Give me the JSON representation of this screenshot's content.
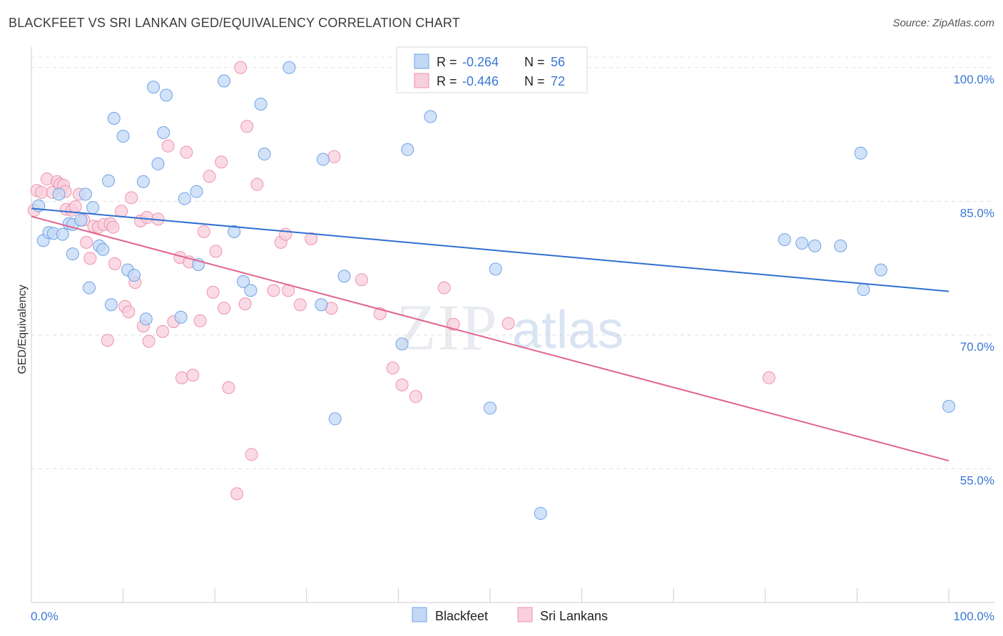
{
  "title": "BLACKFEET VS SRI LANKAN GED/EQUIVALENCY CORRELATION CHART",
  "source": "Source: ZipAtlas.com",
  "watermark": {
    "zip": "ZIP",
    "atlas": "atlas"
  },
  "chart_data": {
    "type": "scatter",
    "title": "BLACKFEET VS SRI LANKAN GED/EQUIVALENCY CORRELATION CHART",
    "xlabel": "",
    "ylabel": "GED/Equivalency",
    "xlim": [
      0,
      100
    ],
    "ylim": [
      40,
      101.5
    ],
    "x_tick_labels": {
      "left": "0.0%",
      "right": "100.0%"
    },
    "y_ticks": [
      100,
      85,
      70,
      55
    ],
    "y_tick_labels": [
      "100.0%",
      "85.0%",
      "70.0%",
      "55.0%"
    ],
    "grid": true,
    "legend_stats": [
      {
        "r_label": "R =",
        "r_value": "-0.264",
        "n_label": "N =",
        "n_value": "56"
      },
      {
        "r_label": "R =",
        "r_value": "-0.446",
        "n_label": "N =",
        "n_value": "72"
      }
    ],
    "series": [
      {
        "name": "Blackfeet",
        "color": "#6fa3e6",
        "fill": "#c3d8f5",
        "line_color": "#2f6fd0",
        "trend": {
          "x0": 0,
          "y0": 84.2,
          "x1": 100,
          "y1": 74.9
        },
        "points": [
          [
            0.8,
            84.5
          ],
          [
            1.3,
            80.6
          ],
          [
            1.9,
            81.5
          ],
          [
            2.4,
            81.4
          ],
          [
            3.0,
            85.8
          ],
          [
            3.4,
            81.3
          ],
          [
            4.1,
            82.5
          ],
          [
            4.5,
            79.1
          ],
          [
            4.5,
            82.4
          ],
          [
            5.4,
            82.9
          ],
          [
            5.9,
            85.8
          ],
          [
            6.3,
            75.3
          ],
          [
            6.7,
            84.3
          ],
          [
            7.4,
            80.0
          ],
          [
            7.8,
            79.6
          ],
          [
            8.4,
            87.3
          ],
          [
            8.7,
            73.4
          ],
          [
            9.0,
            94.3
          ],
          [
            10.0,
            92.3
          ],
          [
            10.5,
            77.3
          ],
          [
            11.2,
            76.7
          ],
          [
            12.2,
            87.2
          ],
          [
            12.5,
            71.8
          ],
          [
            13.3,
            97.8
          ],
          [
            13.8,
            89.2
          ],
          [
            14.4,
            92.7
          ],
          [
            14.7,
            96.9
          ],
          [
            16.3,
            72.0
          ],
          [
            16.7,
            85.3
          ],
          [
            18.0,
            86.1
          ],
          [
            18.2,
            77.9
          ],
          [
            21.0,
            98.5
          ],
          [
            22.1,
            81.6
          ],
          [
            23.1,
            76.0
          ],
          [
            23.9,
            75.0
          ],
          [
            25.0,
            95.9
          ],
          [
            25.4,
            90.3
          ],
          [
            28.1,
            100.0
          ],
          [
            31.6,
            73.4
          ],
          [
            31.8,
            89.7
          ],
          [
            33.1,
            60.6
          ],
          [
            34.1,
            76.6
          ],
          [
            40.4,
            69.0
          ],
          [
            41.0,
            90.8
          ],
          [
            43.5,
            94.5
          ],
          [
            50.0,
            61.8
          ],
          [
            50.6,
            77.4
          ],
          [
            55.5,
            50.0
          ],
          [
            82.1,
            80.7
          ],
          [
            84.0,
            80.3
          ],
          [
            85.4,
            80.0
          ],
          [
            88.2,
            80.0
          ],
          [
            90.4,
            90.4
          ],
          [
            90.7,
            75.1
          ],
          [
            92.6,
            77.3
          ],
          [
            100.0,
            62.0
          ]
        ]
      },
      {
        "name": "Sri Lankans",
        "color": "#ee92ad",
        "fill": "#f8cfdc",
        "line_color": "#e0648e",
        "trend": {
          "x0": 0,
          "y0": 83.3,
          "x1": 100,
          "y1": 55.9
        },
        "points": [
          [
            0.6,
            86.2
          ],
          [
            1.1,
            86.0
          ],
          [
            1.7,
            87.5
          ],
          [
            2.3,
            86.0
          ],
          [
            2.8,
            87.2
          ],
          [
            3.1,
            86.9
          ],
          [
            3.5,
            86.8
          ],
          [
            3.7,
            86.1
          ],
          [
            3.8,
            84.1
          ],
          [
            4.4,
            84.0
          ],
          [
            4.8,
            84.4
          ],
          [
            5.2,
            85.8
          ],
          [
            5.7,
            82.9
          ],
          [
            6.0,
            80.4
          ],
          [
            6.4,
            78.6
          ],
          [
            6.8,
            82.2
          ],
          [
            7.3,
            82.1
          ],
          [
            7.9,
            82.4
          ],
          [
            8.3,
            69.4
          ],
          [
            8.6,
            82.5
          ],
          [
            8.9,
            82.1
          ],
          [
            9.1,
            78.0
          ],
          [
            9.8,
            83.9
          ],
          [
            10.2,
            73.2
          ],
          [
            10.6,
            72.6
          ],
          [
            10.9,
            85.4
          ],
          [
            11.3,
            75.9
          ],
          [
            11.9,
            82.8
          ],
          [
            12.2,
            71.0
          ],
          [
            12.6,
            83.2
          ],
          [
            12.8,
            69.3
          ],
          [
            13.8,
            83.0
          ],
          [
            14.3,
            70.4
          ],
          [
            14.9,
            91.2
          ],
          [
            15.5,
            71.5
          ],
          [
            16.2,
            78.7
          ],
          [
            16.4,
            65.2
          ],
          [
            16.9,
            90.5
          ],
          [
            17.2,
            78.2
          ],
          [
            17.6,
            65.5
          ],
          [
            18.4,
            71.6
          ],
          [
            18.8,
            81.6
          ],
          [
            19.4,
            87.8
          ],
          [
            19.8,
            74.8
          ],
          [
            20.1,
            79.4
          ],
          [
            20.7,
            89.4
          ],
          [
            21.0,
            73.0
          ],
          [
            21.5,
            64.1
          ],
          [
            22.4,
            52.2
          ],
          [
            22.8,
            100.0
          ],
          [
            23.3,
            73.5
          ],
          [
            23.5,
            93.4
          ],
          [
            24.0,
            56.6
          ],
          [
            24.6,
            86.9
          ],
          [
            26.4,
            75.0
          ],
          [
            27.2,
            80.4
          ],
          [
            27.7,
            81.3
          ],
          [
            28.0,
            75.0
          ],
          [
            29.3,
            73.4
          ],
          [
            30.5,
            80.8
          ],
          [
            32.7,
            73.0
          ],
          [
            33.0,
            90.0
          ],
          [
            36.0,
            76.2
          ],
          [
            38.0,
            72.4
          ],
          [
            39.4,
            66.3
          ],
          [
            40.4,
            64.4
          ],
          [
            41.9,
            63.1
          ],
          [
            45.0,
            75.3
          ],
          [
            46.0,
            71.2
          ],
          [
            52.0,
            71.3
          ],
          [
            80.4,
            65.2
          ],
          [
            0.3,
            84.0
          ]
        ]
      }
    ]
  }
}
